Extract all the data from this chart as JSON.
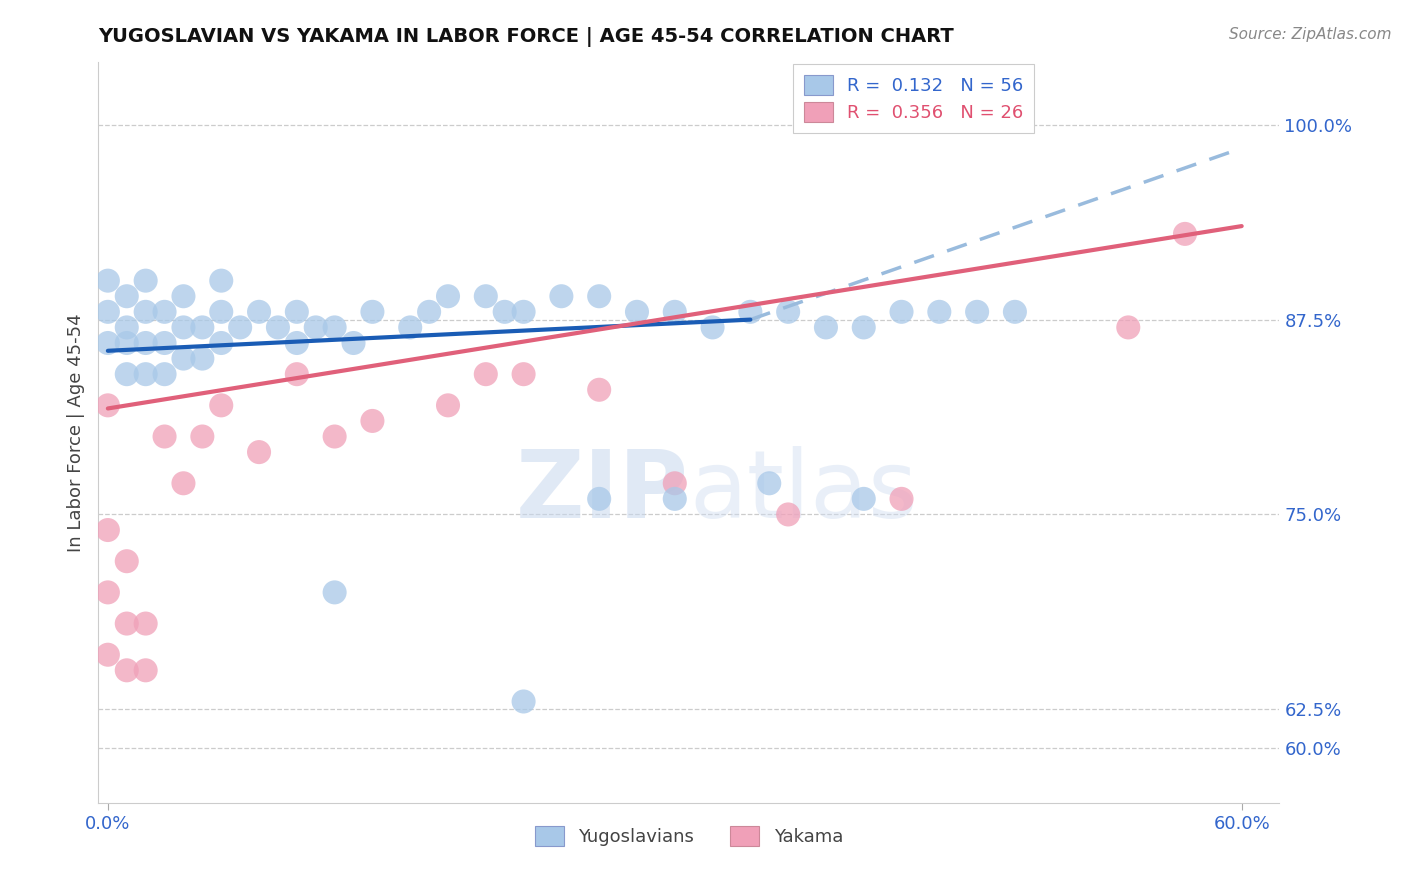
{
  "title": "YUGOSLAVIAN VS YAKAMA IN LABOR FORCE | AGE 45-54 CORRELATION CHART",
  "source": "Source: ZipAtlas.com",
  "ylabel": "In Labor Force | Age 45-54",
  "ytick_values": [
    0.6,
    0.625,
    0.75,
    0.875,
    1.0
  ],
  "ytick_labels": [
    "60.0%",
    "62.5%",
    "75.0%",
    "87.5%",
    "100.0%"
  ],
  "xlim": [
    -0.005,
    0.62
  ],
  "ylim": [
    0.565,
    1.04
  ],
  "legend_entries": [
    {
      "label": "R =  0.132   N = 56",
      "color": "#a8c8e8"
    },
    {
      "label": "R =  0.356   N = 26",
      "color": "#f0a0b8"
    }
  ],
  "legend_labels_bottom": [
    "Yugoslavians",
    "Yakama"
  ],
  "watermark_text": "ZIPatlas",
  "yug_color": "#a8c8e8",
  "yak_color": "#f0a0b8",
  "yug_line_color": "#1a5cb5",
  "yak_line_color": "#e0607a",
  "dash_color": "#99bbdd",
  "yug_scatter_x": [
    0.0,
    0.0,
    0.0,
    0.01,
    0.01,
    0.01,
    0.01,
    0.02,
    0.02,
    0.02,
    0.02,
    0.03,
    0.03,
    0.03,
    0.04,
    0.04,
    0.04,
    0.05,
    0.05,
    0.06,
    0.06,
    0.06,
    0.07,
    0.08,
    0.09,
    0.1,
    0.1,
    0.11,
    0.12,
    0.13,
    0.14,
    0.16,
    0.17,
    0.18,
    0.2,
    0.21,
    0.22,
    0.24,
    0.26,
    0.28,
    0.3,
    0.32,
    0.34,
    0.36,
    0.38,
    0.4,
    0.42,
    0.44,
    0.46,
    0.48,
    0.22,
    0.12,
    0.26,
    0.3,
    0.35,
    0.4
  ],
  "yug_scatter_y": [
    0.86,
    0.88,
    0.9,
    0.84,
    0.86,
    0.87,
    0.89,
    0.84,
    0.86,
    0.88,
    0.9,
    0.84,
    0.86,
    0.88,
    0.85,
    0.87,
    0.89,
    0.85,
    0.87,
    0.86,
    0.88,
    0.9,
    0.87,
    0.88,
    0.87,
    0.86,
    0.88,
    0.87,
    0.87,
    0.86,
    0.88,
    0.87,
    0.88,
    0.89,
    0.89,
    0.88,
    0.88,
    0.89,
    0.89,
    0.88,
    0.88,
    0.87,
    0.88,
    0.88,
    0.87,
    0.87,
    0.88,
    0.88,
    0.88,
    0.88,
    0.63,
    0.7,
    0.76,
    0.76,
    0.77,
    0.76
  ],
  "yak_scatter_x": [
    0.0,
    0.0,
    0.0,
    0.0,
    0.01,
    0.01,
    0.01,
    0.02,
    0.02,
    0.03,
    0.04,
    0.05,
    0.06,
    0.08,
    0.1,
    0.12,
    0.14,
    0.18,
    0.2,
    0.22,
    0.26,
    0.3,
    0.36,
    0.42,
    0.54,
    0.57
  ],
  "yak_scatter_y": [
    0.66,
    0.7,
    0.74,
    0.82,
    0.65,
    0.68,
    0.72,
    0.65,
    0.68,
    0.8,
    0.77,
    0.8,
    0.82,
    0.79,
    0.84,
    0.8,
    0.81,
    0.82,
    0.84,
    0.84,
    0.83,
    0.77,
    0.75,
    0.76,
    0.87,
    0.93
  ],
  "yug_line_x": [
    0.0,
    0.34
  ],
  "yug_line_y": [
    0.855,
    0.875
  ],
  "yak_line_x": [
    0.0,
    0.6
  ],
  "yak_line_y": [
    0.818,
    0.935
  ],
  "dash_line_x": [
    0.34,
    0.6
  ],
  "dash_line_y": [
    0.875,
    0.985
  ]
}
